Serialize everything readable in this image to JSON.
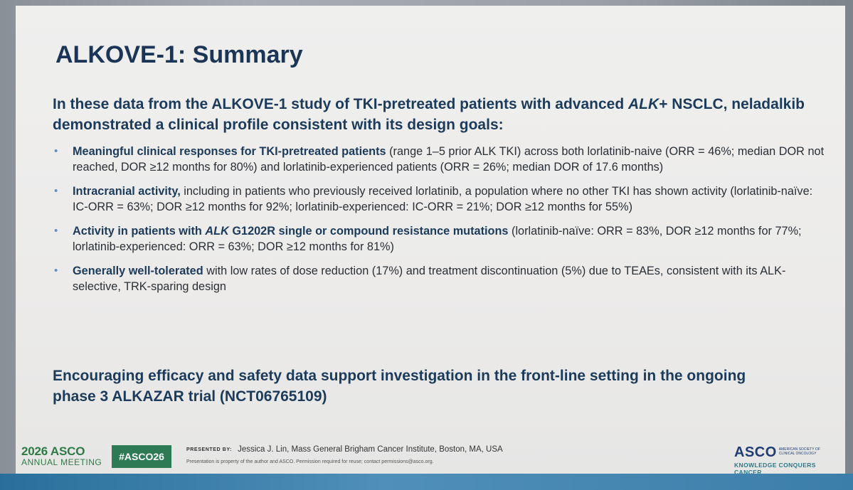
{
  "title": "ALKOVE-1: Summary",
  "intro": {
    "part1": "In these data from the ALKOVE-1 study of TKI-pretreated patients with advanced ",
    "italic": "ALK",
    "part2": "+ NSCLC, neladalkib demonstrated a clinical profile consistent with its design goals:"
  },
  "bullet_marker": "•",
  "bullets": [
    {
      "bold": "Meaningful clinical responses for TKI-pretreated patients",
      "text": " (range 1–5 prior ALK TKI) across both lorlatinib-naive (ORR = 46%; median DOR not reached, DOR ≥12 months for 80%) and lorlatinib-experienced patients (ORR = 26%; median DOR of 17.6 months)"
    },
    {
      "bold": "Intracranial activity,",
      "text": " including in patients who previously received lorlatinib, a population where no other TKI has shown activity (lorlatinib-naïve: IC-ORR = 63%; DOR ≥12 months for 92%; lorlatinib-experienced: IC-ORR = 21%; DOR ≥12 months for 55%)"
    },
    {
      "bold_a": "Activity in patients with ",
      "bold_italic": "ALK",
      "bold_b": " G1202R single or compound resistance mutations",
      "text": " (lorlatinib-naïve: ORR = 83%, DOR ≥12 months for 77%; lorlatinib-experienced: ORR = 63%; DOR ≥12 months for 81%)"
    },
    {
      "bold": "Generally well-tolerated",
      "text": " with low rates of dose reduction (17%) and treatment discontinuation (5%) due to TEAEs, consistent with its ALK-selective, TRK-sparing design"
    }
  ],
  "conclusion": "Encouraging efficacy and safety data support investigation in the front-line setting in the ongoing phase 3 ALKAZAR trial (NCT06765109)",
  "footer": {
    "meeting_logo_year_asco": "2026 ASCO",
    "meeting_logo_subtitle": "ANNUAL MEETING",
    "hashtag": "#ASCO26",
    "presented_by_label": "PRESENTED BY:",
    "presenter": "Jessica J. Lin, Mass General Brigham Cancer Institute, Boston, MA, USA",
    "permission": "Presentation is property of the author and ASCO. Permission required for reuse; contact permissions@asco.org.",
    "asco_logo": "ASCO",
    "asco_society": "AMERICAN SOCIETY OF CLINICAL ONCOLOGY",
    "asco_tagline": "KNOWLEDGE CONQUERS CANCER"
  },
  "colors": {
    "title": "#1b3556",
    "bullet_marker": "#5a8fc7",
    "asco_green": "#2e7a45",
    "asco_blue": "#1f3c73"
  }
}
